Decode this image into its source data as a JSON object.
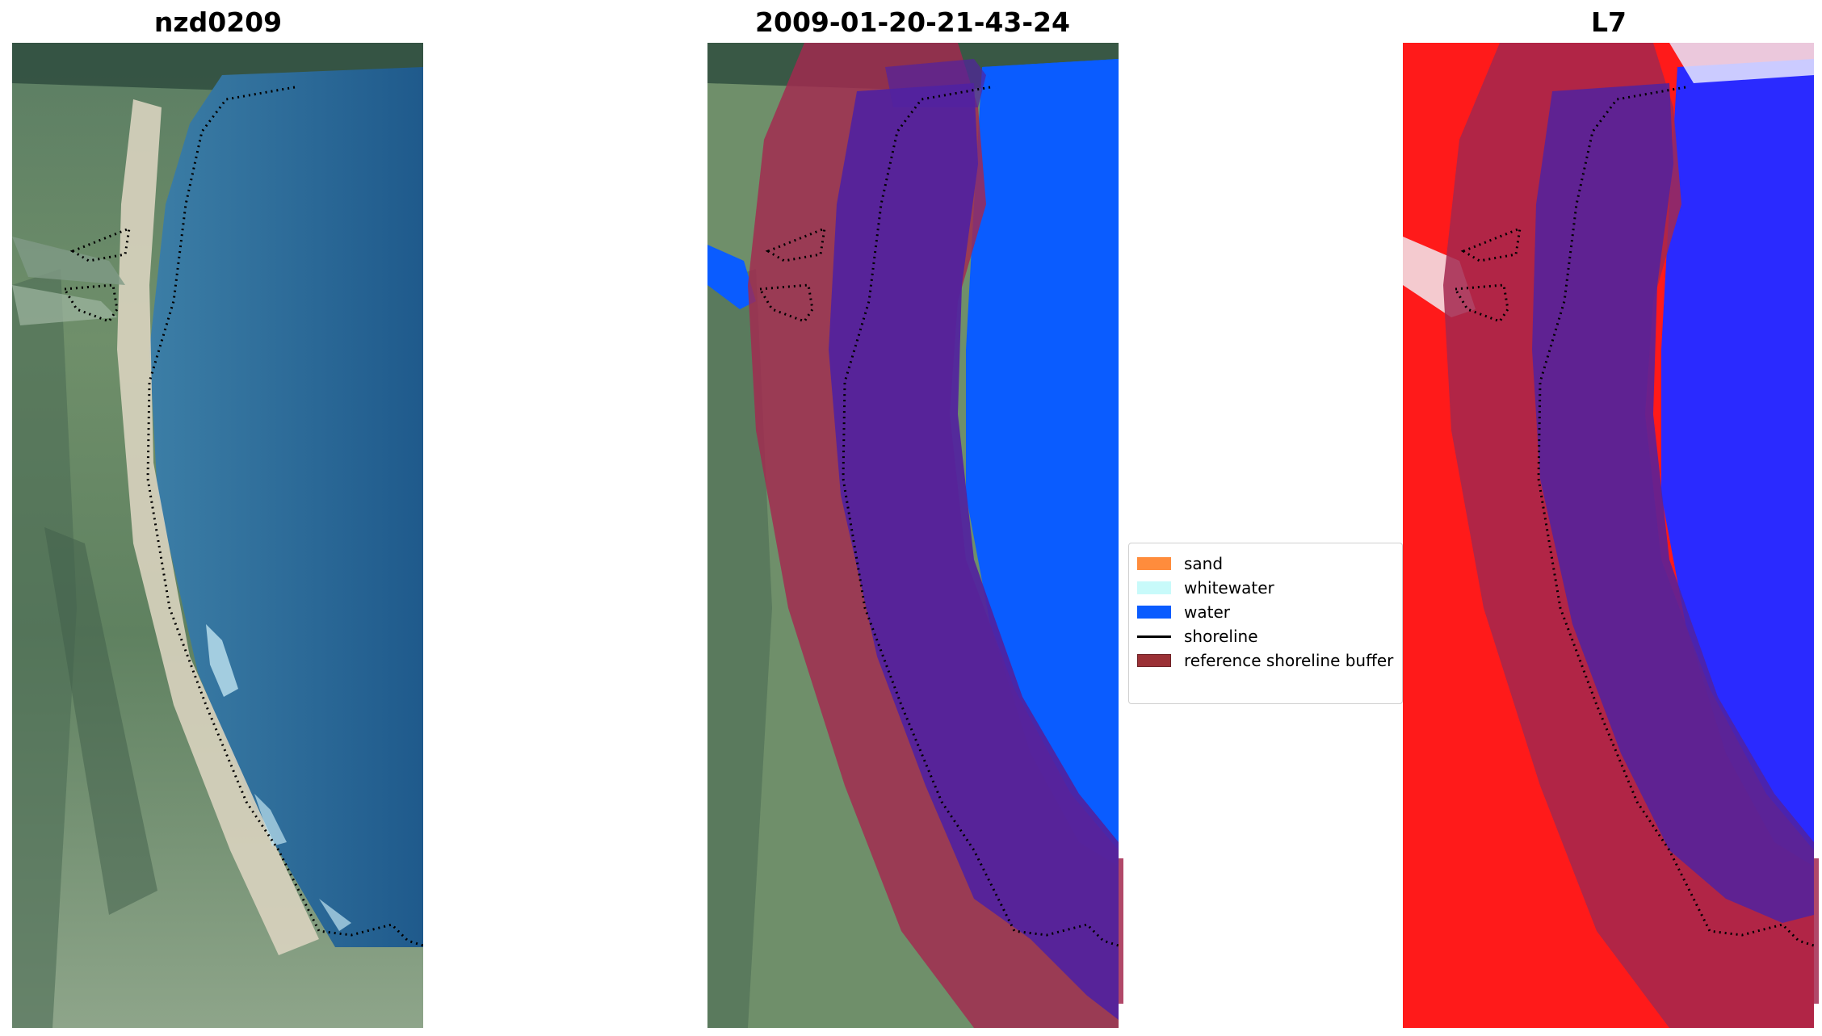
{
  "panels": [
    {
      "title": "nzd0209"
    },
    {
      "title": "2009-01-20-21-43-24"
    },
    {
      "title": "L7"
    }
  ],
  "legend": {
    "items": [
      {
        "label": "sand",
        "color": "#ff8c3c"
      },
      {
        "label": "whitewater",
        "color": "#c8fafa"
      },
      {
        "label": "water",
        "color": "#0a5cff"
      },
      {
        "label": "shoreline",
        "color": "#000000"
      },
      {
        "label": "reference shoreline buffer",
        "color": "#9b3136"
      }
    ]
  },
  "colors": {
    "buffer_overlay": "#a3284f",
    "water_class": "#0a5cff",
    "sand_overlay": "#5122a0",
    "land_red": "#ff1a1a",
    "water_blue": "#2a2aff"
  }
}
